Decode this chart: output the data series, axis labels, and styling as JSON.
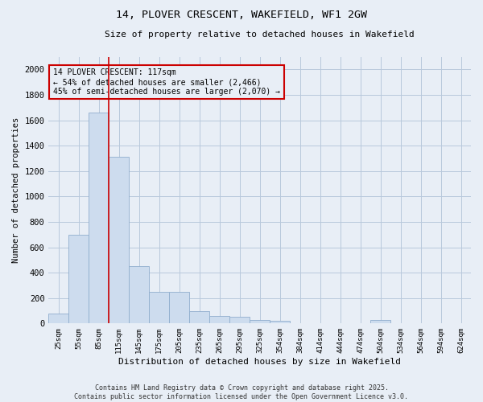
{
  "title": "14, PLOVER CRESCENT, WAKEFIELD, WF1 2GW",
  "subtitle": "Size of property relative to detached houses in Wakefield",
  "xlabel": "Distribution of detached houses by size in Wakefield",
  "ylabel": "Number of detached properties",
  "footer_line1": "Contains HM Land Registry data © Crown copyright and database right 2025.",
  "footer_line2": "Contains public sector information licensed under the Open Government Licence v3.0.",
  "annotation_line1": "14 PLOVER CRESCENT: 117sqm",
  "annotation_line2": "← 54% of detached houses are smaller (2,466)",
  "annotation_line3": "45% of semi-detached houses are larger (2,070) →",
  "bar_color": "#cddcee",
  "bar_edge_color": "#90aece",
  "vline_color": "#cc0000",
  "annotation_box_edge_color": "#cc0000",
  "grid_color": "#b8c8dc",
  "bg_color": "#e8eef6",
  "categories": [
    "25sqm",
    "55sqm",
    "85sqm",
    "115sqm",
    "145sqm",
    "175sqm",
    "205sqm",
    "235sqm",
    "265sqm",
    "295sqm",
    "325sqm",
    "354sqm",
    "384sqm",
    "414sqm",
    "444sqm",
    "474sqm",
    "504sqm",
    "534sqm",
    "564sqm",
    "594sqm",
    "624sqm"
  ],
  "values": [
    75,
    700,
    1660,
    1310,
    450,
    250,
    250,
    100,
    60,
    50,
    30,
    20,
    0,
    0,
    0,
    0,
    30,
    0,
    0,
    0,
    0
  ],
  "vline_position": 2.5,
  "ylim": [
    0,
    2100
  ],
  "yticks": [
    0,
    200,
    400,
    600,
    800,
    1000,
    1200,
    1400,
    1600,
    1800,
    2000
  ]
}
